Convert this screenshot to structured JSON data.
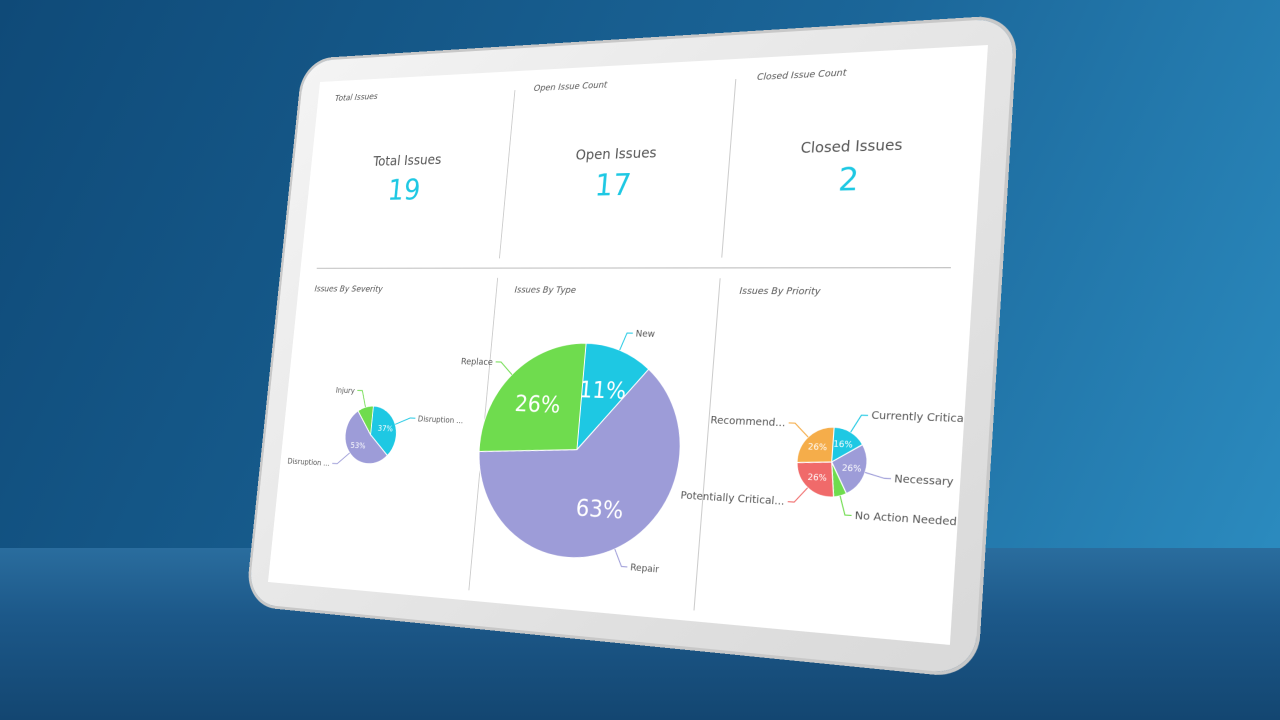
{
  "cards": [
    {
      "title": "Total Issues",
      "label": "Total Issues",
      "value": 19
    },
    {
      "title": "Open Issue Count",
      "label": "Open Issues",
      "value": 17
    },
    {
      "title": "Closed Issue Count",
      "label": "Closed Issues",
      "value": 2
    }
  ],
  "charts": [
    {
      "title": "Issues By Severity",
      "slices": [
        {
          "name": "Disruption ...",
          "value": 37,
          "value_label": "37%",
          "color": "#1ec8e3"
        },
        {
          "name": "Disruption ...",
          "value": 53,
          "value_label": "53%",
          "color": "#9d9cd8"
        },
        {
          "name": "Injury",
          "value": 10,
          "color": "#6fdc4e"
        }
      ]
    },
    {
      "title": "Issues By Type",
      "slices": [
        {
          "name": "New",
          "value": 11,
          "value_label": "11%",
          "color": "#1ec8e3"
        },
        {
          "name": "Repair",
          "value": 63,
          "value_label": "63%",
          "color": "#9d9cd8"
        },
        {
          "name": "Replace",
          "value": 26,
          "value_label": "26%",
          "color": "#6fdc4e"
        }
      ]
    },
    {
      "title": "Issues By Priority",
      "slices": [
        {
          "name": "Currently Critical...",
          "value": 16,
          "value_label": "16%",
          "color": "#1ec8e3"
        },
        {
          "name": "Necessary",
          "value": 26,
          "value_label": "26%",
          "color": "#9d9cd8"
        },
        {
          "name": "No Action Needed",
          "value": 6,
          "color": "#6fdc4e"
        },
        {
          "name": "Potentially Critical...",
          "value": 26,
          "value_label": "26%",
          "color": "#f06a6a"
        },
        {
          "name": "Recommend...",
          "value": 26,
          "value_label": "26%",
          "color": "#f5ad4a"
        }
      ]
    }
  ]
}
